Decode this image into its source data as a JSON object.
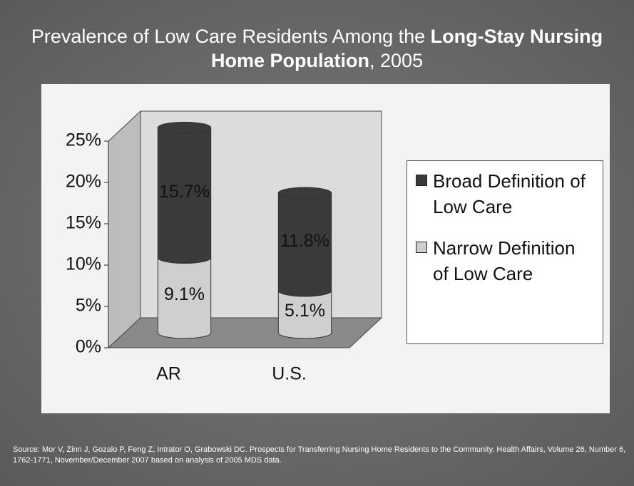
{
  "chart_data": {
    "type": "bar3d_stacked",
    "title": [
      "Prevalence of Low Care Residents Among the ",
      "Long-Stay Nursing Home Population",
      ", 2005"
    ],
    "categories": [
      "AR",
      "U.S."
    ],
    "series": [
      {
        "name": "Narrow Definition of Low Care",
        "color": "#cfcfcf",
        "values": [
          9.1,
          5.1
        ],
        "value_labels": [
          "9.1%",
          "5.1%"
        ]
      },
      {
        "name": "Broad Definition of Low Care",
        "color": "#3a3a3a",
        "values": [
          15.7,
          11.8
        ],
        "value_labels": [
          "15.7%",
          "11.8%"
        ]
      }
    ],
    "ylim": [
      0,
      25
    ],
    "yticks": [
      {
        "value": 0,
        "label": "0%"
      },
      {
        "value": 5,
        "label": "5%"
      },
      {
        "value": 10,
        "label": "10%"
      },
      {
        "value": 15,
        "label": "15%"
      },
      {
        "value": 20,
        "label": "20%"
      },
      {
        "value": 25,
        "label": "25%"
      }
    ],
    "legend": "right",
    "source": "Source: Mor V, Zinn J, Gozalo P, Feng Z, Intrator O, Grabowski DC. Prospects for Transferring Nursing Home Residents to the Community. Health Affairs, Volume 26, Number 6, 1762-1771, November/December 2007 based on analysis of 2005 MDS data."
  }
}
